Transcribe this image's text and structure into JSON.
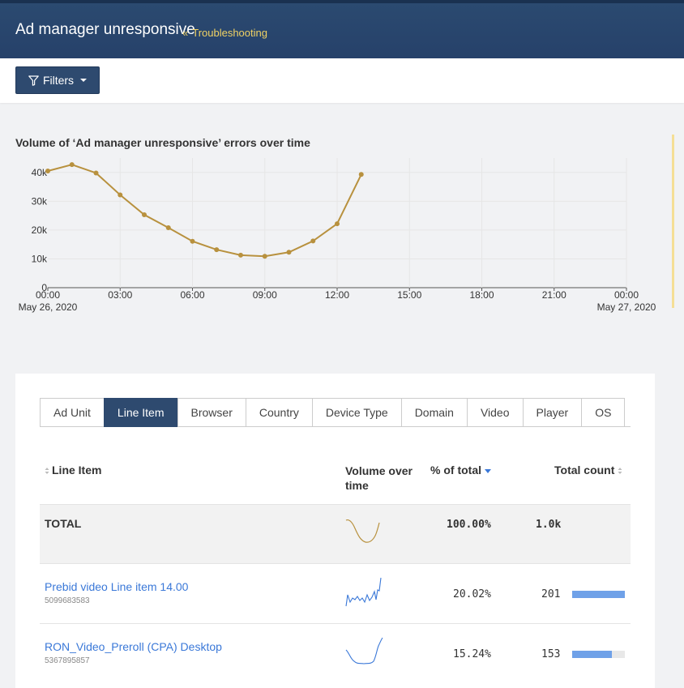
{
  "header": {
    "title": "Ad manager unresponsive",
    "breadcrumb_sep": "«",
    "breadcrumb": "Troubleshooting"
  },
  "toolbar": {
    "filters_label": "Filters"
  },
  "chart_title": "Volume of ‘Ad manager unresponsive’ errors over time",
  "colors": {
    "series": "#b8913e",
    "sparkline_total": "#b8913e",
    "sparkline_item": "#3a78d8",
    "accent": "#2e4a6f",
    "link": "#3a78d8",
    "bar": "#6fa1e8"
  },
  "chart_data": {
    "type": "line",
    "x": [
      "00:00",
      "01:00",
      "02:00",
      "03:00",
      "04:00",
      "05:00",
      "06:00",
      "07:00",
      "08:00",
      "09:00",
      "10:00",
      "11:00",
      "12:00",
      "13:00"
    ],
    "values": [
      40500,
      42700,
      39800,
      32200,
      25300,
      20800,
      16100,
      13200,
      11300,
      10900,
      12300,
      16200,
      22200,
      39300
    ],
    "x_ticks": [
      "00:00",
      "03:00",
      "06:00",
      "09:00",
      "12:00",
      "15:00",
      "18:00",
      "21:00",
      "00:00"
    ],
    "x_tick_sublabels": [
      "May 26, 2020",
      "",
      "",
      "",
      "",
      "",
      "",
      "",
      "May 27, 2020"
    ],
    "y_ticks": [
      "0",
      "10k",
      "20k",
      "30k",
      "40k"
    ],
    "ylim": [
      0,
      45000
    ],
    "xlim_hours": [
      0,
      24
    ],
    "grid": true
  },
  "tabs": [
    {
      "label": "Ad Unit",
      "active": false
    },
    {
      "label": "Line Item",
      "active": true
    },
    {
      "label": "Browser",
      "active": false
    },
    {
      "label": "Country",
      "active": false
    },
    {
      "label": "Device Type",
      "active": false
    },
    {
      "label": "Domain",
      "active": false
    },
    {
      "label": "Video",
      "active": false
    },
    {
      "label": "Player",
      "active": false
    },
    {
      "label": "OS",
      "active": false
    }
  ],
  "table": {
    "headers": {
      "line_item": "Line Item",
      "volume": "Volume over time",
      "pct": "% of total",
      "count": "Total count"
    },
    "total": {
      "label": "TOTAL",
      "pct": "100.00%",
      "count": "1.0k"
    },
    "rows": [
      {
        "name": "Prebid video Line item 14.00",
        "id": "5099683583",
        "pct": "20.02%",
        "count": "201",
        "bar_fraction": 1.0
      },
      {
        "name": "RON_Video_Preroll (CPA) Desktop",
        "id": "5367895857",
        "pct": "15.24%",
        "count": "153",
        "bar_fraction": 0.76
      }
    ]
  }
}
